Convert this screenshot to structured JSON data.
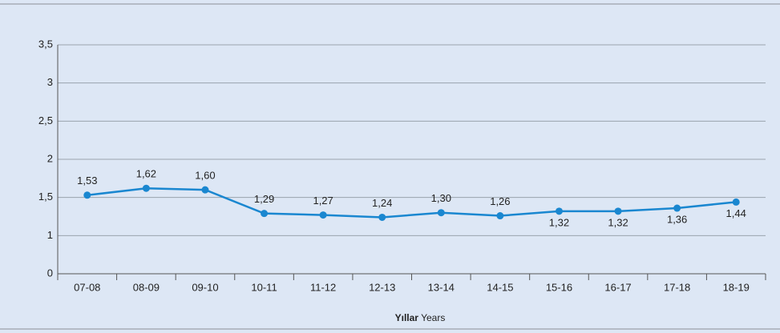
{
  "chart_data": {
    "type": "line",
    "categories": [
      "07-08",
      "08-09",
      "09-10",
      "10-11",
      "11-12",
      "12-13",
      "13-14",
      "14-15",
      "15-16",
      "16-17",
      "17-18",
      "18-19"
    ],
    "series": [
      {
        "color": "#1a87d0",
        "values": [
          1.53,
          1.62,
          1.6,
          1.29,
          1.27,
          1.24,
          1.3,
          1.26,
          1.32,
          1.32,
          1.36,
          1.44
        ],
        "value_labels": [
          "1,53",
          "1,62",
          "1,60",
          "1,29",
          "1,27",
          "1,24",
          "1,30",
          "1,26",
          "1,32",
          "1,32",
          "1,36",
          "1,44"
        ]
      }
    ],
    "ylim": [
      0,
      3.5
    ],
    "yticks": [
      0,
      1,
      {
        "value": 1.5,
        "label": "1,5"
      },
      2,
      {
        "value": 2.5,
        "label": "2,5"
      },
      3,
      {
        "value": 3.5,
        "label": "3,5"
      }
    ],
    "grid": true,
    "xlabel": {
      "bold": "Yıllar",
      "text": "Years"
    }
  }
}
